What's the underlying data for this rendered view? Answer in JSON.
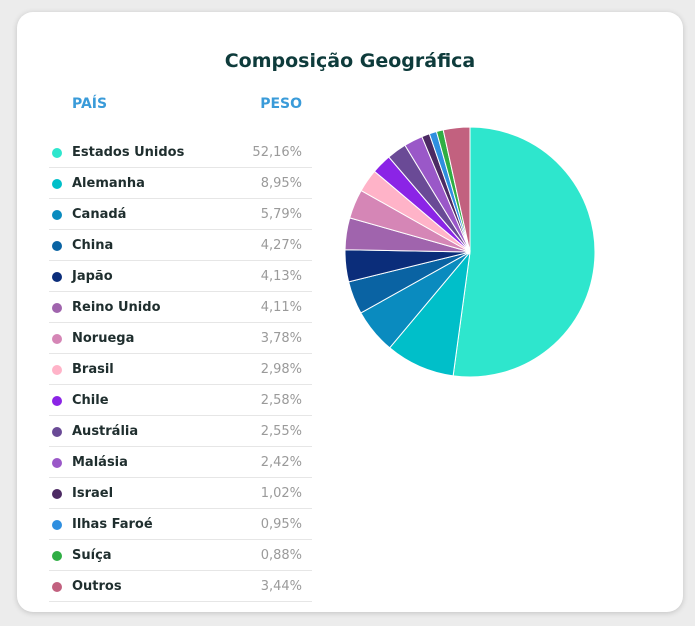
{
  "card": {
    "title": "Composição Geográfica"
  },
  "table": {
    "header_country": "PAÍS",
    "header_weight": "PESO"
  },
  "chart_data": {
    "type": "pie",
    "title": "Composição Geográfica",
    "slices": [
      {
        "label": "Estados Unidos",
        "value": 52.16,
        "display": "52,16%",
        "color": "#2ee6cd"
      },
      {
        "label": "Alemanha",
        "value": 8.95,
        "display": "8,95%",
        "color": "#00bfc9"
      },
      {
        "label": "Canadá",
        "value": 5.79,
        "display": "5,79%",
        "color": "#0a8bbf"
      },
      {
        "label": "China",
        "value": 4.27,
        "display": "4,27%",
        "color": "#0a63a3"
      },
      {
        "label": "Japão",
        "value": 4.13,
        "display": "4,13%",
        "color": "#0b2d7a"
      },
      {
        "label": "Reino Unido",
        "value": 4.11,
        "display": "4,11%",
        "color": "#a064ad"
      },
      {
        "label": "Noruega",
        "value": 3.78,
        "display": "3,78%",
        "color": "#d586b6"
      },
      {
        "label": "Brasil",
        "value": 2.98,
        "display": "2,98%",
        "color": "#ffb3c8"
      },
      {
        "label": "Chile",
        "value": 2.58,
        "display": "2,58%",
        "color": "#8b24e6"
      },
      {
        "label": "Austrália",
        "value": 2.55,
        "display": "2,55%",
        "color": "#6a4a96"
      },
      {
        "label": "Malásia",
        "value": 2.42,
        "display": "2,42%",
        "color": "#9a58c8"
      },
      {
        "label": "Israel",
        "value": 1.02,
        "display": "1,02%",
        "color": "#4c2a63"
      },
      {
        "label": "Ilhas Faroé",
        "value": 0.95,
        "display": "0,95%",
        "color": "#2f8fe0"
      },
      {
        "label": "Suíça",
        "value": 0.88,
        "display": "0,88%",
        "color": "#2fae44"
      },
      {
        "label": "Outros",
        "value": 3.44,
        "display": "3,44%",
        "color": "#c2617f"
      }
    ]
  }
}
